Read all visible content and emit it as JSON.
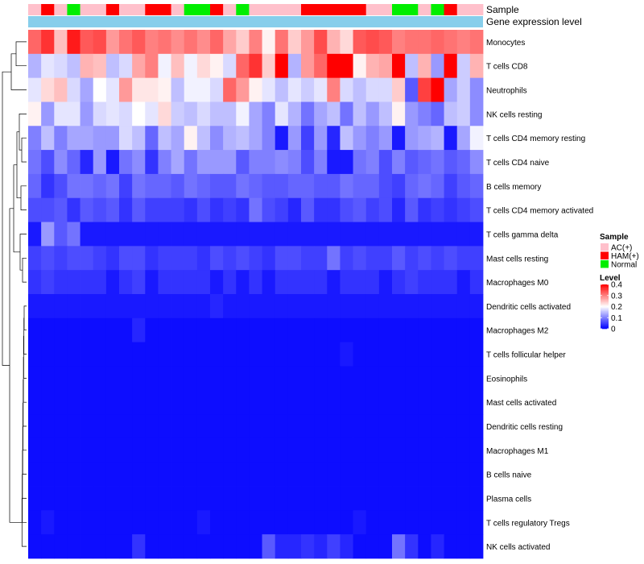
{
  "chart_data": {
    "type": "heatmap",
    "annotation_labels": [
      "Sample",
      "Gene expression level"
    ],
    "legend": {
      "sample_title": "Sample",
      "sample_groups": [
        {
          "label": "AC(+)",
          "color": "#FFC0CB"
        },
        {
          "label": "HAM(+)",
          "color": "#FF0000"
        },
        {
          "label": "Normal",
          "color": "#00EE00"
        }
      ],
      "level_title": "Level",
      "level_ticks": [
        "0.4",
        "0.3",
        "0.2",
        "0.1",
        "0"
      ],
      "scale": {
        "min": 0,
        "max": 0.4,
        "low_color": "#0000FF",
        "mid_color": "#FFFFFF",
        "high_color": "#FF0000",
        "mid_value": 0.2
      }
    },
    "sample_groups_row": [
      0,
      1,
      0,
      2,
      0,
      0,
      1,
      0,
      0,
      1,
      1,
      0,
      2,
      2,
      1,
      0,
      2,
      0,
      0,
      0,
      0,
      1,
      1,
      1,
      1,
      1,
      0,
      0,
      2,
      2,
      0,
      2,
      1,
      0,
      0
    ],
    "expression_bar_color": "#87CEEB",
    "rows": [
      "Monocytes",
      "T cells CD8",
      "Neutrophils",
      "NK cells resting",
      "T cells CD4 memory resting",
      "T cells CD4 naive",
      "B cells memory",
      "T cells CD4 memory activated",
      "T cells gamma delta",
      "Mast cells resting",
      "Macrophages M0",
      "Dendritic cells activated",
      "Macrophages M2",
      "T cells follicular helper",
      "Eosinophils",
      "Mast cells activated",
      "Dendritic cells resting",
      "Macrophages M1",
      "B cells naive",
      "Plasma cells",
      "T cells regulatory  Tregs",
      "NK cells activated"
    ],
    "values": [
      [
        0.32,
        0.36,
        0.25,
        0.38,
        0.33,
        0.34,
        0.28,
        0.31,
        0.33,
        0.3,
        0.31,
        0.29,
        0.31,
        0.29,
        0.32,
        0.27,
        0.24,
        0.3,
        0.21,
        0.31,
        0.24,
        0.28,
        0.34,
        0.26,
        0.23,
        0.33,
        0.34,
        0.33,
        0.3,
        0.31,
        0.31,
        0.32,
        0.31,
        0.3,
        0.31
      ],
      [
        0.14,
        0.18,
        0.17,
        0.15,
        0.26,
        0.25,
        0.15,
        0.17,
        0.27,
        0.3,
        0.19,
        0.25,
        0.19,
        0.23,
        0.21,
        0.17,
        0.32,
        0.36,
        0.24,
        0.41,
        0.14,
        0.28,
        0.32,
        0.45,
        0.4,
        0.21,
        0.26,
        0.27,
        0.4,
        0.15,
        0.26,
        0.12,
        0.42,
        0.16,
        0.26
      ],
      [
        0.18,
        0.23,
        0.25,
        0.17,
        0.13,
        0.2,
        0.18,
        0.28,
        0.22,
        0.22,
        0.21,
        0.15,
        0.19,
        0.19,
        0.17,
        0.32,
        0.28,
        0.21,
        0.18,
        0.15,
        0.18,
        0.16,
        0.18,
        0.3,
        0.17,
        0.15,
        0.17,
        0.17,
        0.24,
        0.07,
        0.35,
        0.4,
        0.13,
        0.16,
        0.11
      ],
      [
        0.21,
        0.12,
        0.18,
        0.18,
        0.12,
        0.17,
        0.18,
        0.17,
        0.2,
        0.18,
        0.23,
        0.16,
        0.15,
        0.17,
        0.15,
        0.15,
        0.19,
        0.13,
        0.1,
        0.18,
        0.14,
        0.09,
        0.13,
        0.15,
        0.09,
        0.15,
        0.12,
        0.15,
        0.21,
        0.12,
        0.1,
        0.08,
        0.15,
        0.16,
        0.11
      ],
      [
        0.1,
        0.15,
        0.1,
        0.13,
        0.13,
        0.12,
        0.12,
        0.17,
        0.15,
        0.08,
        0.15,
        0.13,
        0.21,
        0.15,
        0.11,
        0.14,
        0.15,
        0.13,
        0.1,
        0.02,
        0.12,
        0.05,
        0.12,
        0.03,
        0.15,
        0.12,
        0.1,
        0.12,
        0.02,
        0.12,
        0.13,
        0.14,
        0.02,
        0.13,
        0.19
      ],
      [
        0.09,
        0.06,
        0.11,
        0.08,
        0.03,
        0.12,
        0.02,
        0.09,
        0.11,
        0.04,
        0.1,
        0.13,
        0.09,
        0.12,
        0.12,
        0.12,
        0.07,
        0.1,
        0.1,
        0.11,
        0.1,
        0.06,
        0.1,
        0.02,
        0.02,
        0.09,
        0.1,
        0.06,
        0.1,
        0.07,
        0.08,
        0.09,
        0.07,
        0.08,
        0.11
      ],
      [
        0.08,
        0.04,
        0.06,
        0.09,
        0.09,
        0.08,
        0.09,
        0.05,
        0.09,
        0.08,
        0.08,
        0.07,
        0.09,
        0.08,
        0.07,
        0.07,
        0.09,
        0.08,
        0.07,
        0.07,
        0.08,
        0.08,
        0.07,
        0.07,
        0.09,
        0.08,
        0.08,
        0.06,
        0.05,
        0.08,
        0.09,
        0.08,
        0.05,
        0.07,
        0.08
      ],
      [
        0.06,
        0.06,
        0.07,
        0.04,
        0.07,
        0.06,
        0.07,
        0.04,
        0.07,
        0.05,
        0.05,
        0.05,
        0.04,
        0.06,
        0.04,
        0.05,
        0.04,
        0.09,
        0.06,
        0.05,
        0.03,
        0.07,
        0.04,
        0.04,
        0.06,
        0.07,
        0.05,
        0.06,
        0.03,
        0.07,
        0.04,
        0.05,
        0.04,
        0.05,
        0.06
      ],
      [
        0.02,
        0.12,
        0.07,
        0.09,
        0.02,
        0.02,
        0.02,
        0.02,
        0.02,
        0.02,
        0.02,
        0.02,
        0.02,
        0.02,
        0.02,
        0.02,
        0.02,
        0.02,
        0.02,
        0.02,
        0.02,
        0.02,
        0.02,
        0.02,
        0.02,
        0.02,
        0.02,
        0.02,
        0.02,
        0.02,
        0.02,
        0.02,
        0.02,
        0.02,
        0.02
      ],
      [
        0.05,
        0.06,
        0.05,
        0.06,
        0.06,
        0.05,
        0.04,
        0.06,
        0.06,
        0.04,
        0.05,
        0.05,
        0.05,
        0.04,
        0.06,
        0.05,
        0.06,
        0.05,
        0.04,
        0.06,
        0.06,
        0.05,
        0.05,
        0.09,
        0.05,
        0.06,
        0.05,
        0.05,
        0.07,
        0.05,
        0.06,
        0.05,
        0.06,
        0.05,
        0.05
      ],
      [
        0.04,
        0.05,
        0.04,
        0.04,
        0.04,
        0.04,
        0.02,
        0.04,
        0.05,
        0.02,
        0.04,
        0.04,
        0.04,
        0.04,
        0.02,
        0.04,
        0.02,
        0.04,
        0.02,
        0.04,
        0.04,
        0.04,
        0.04,
        0.02,
        0.04,
        0.04,
        0.04,
        0.02,
        0.04,
        0.05,
        0.04,
        0.04,
        0.04,
        0.02,
        0.04
      ],
      [
        0.02,
        0.02,
        0.02,
        0.02,
        0.02,
        0.02,
        0.02,
        0.02,
        0.02,
        0.02,
        0.02,
        0.02,
        0.02,
        0.02,
        0.03,
        0.02,
        0.02,
        0.02,
        0.02,
        0.02,
        0.02,
        0.02,
        0.02,
        0.02,
        0.02,
        0.02,
        0.02,
        0.02,
        0.02,
        0.02,
        0.02,
        0.02,
        0.02,
        0.02,
        0.02
      ],
      [
        0.01,
        0.01,
        0.01,
        0.01,
        0.01,
        0.01,
        0.01,
        0.01,
        0.03,
        0.01,
        0.01,
        0.01,
        0.01,
        0.01,
        0.01,
        0.01,
        0.01,
        0.01,
        0.01,
        0.01,
        0.01,
        0.01,
        0.01,
        0.01,
        0.01,
        0.01,
        0.01,
        0.01,
        0.01,
        0.01,
        0.01,
        0.01,
        0.01,
        0.01,
        0.01
      ],
      [
        0.01,
        0.01,
        0.01,
        0.01,
        0.01,
        0.01,
        0.01,
        0.01,
        0.01,
        0.01,
        0.01,
        0.01,
        0.01,
        0.01,
        0.01,
        0.01,
        0.01,
        0.01,
        0.01,
        0.01,
        0.01,
        0.01,
        0.01,
        0.01,
        0.02,
        0.01,
        0.01,
        0.01,
        0.01,
        0.01,
        0.01,
        0.01,
        0.01,
        0.01,
        0.01
      ],
      [
        0.01,
        0.01,
        0.01,
        0.01,
        0.01,
        0.01,
        0.01,
        0.01,
        0.01,
        0.01,
        0.01,
        0.01,
        0.01,
        0.01,
        0.01,
        0.01,
        0.01,
        0.01,
        0.01,
        0.01,
        0.01,
        0.01,
        0.01,
        0.01,
        0.01,
        0.01,
        0.01,
        0.01,
        0.01,
        0.01,
        0.01,
        0.01,
        0.01,
        0.01,
        0.01
      ],
      [
        0.01,
        0.01,
        0.01,
        0.01,
        0.01,
        0.01,
        0.01,
        0.01,
        0.01,
        0.01,
        0.01,
        0.01,
        0.01,
        0.01,
        0.01,
        0.01,
        0.01,
        0.01,
        0.01,
        0.01,
        0.01,
        0.01,
        0.01,
        0.01,
        0.01,
        0.01,
        0.01,
        0.01,
        0.01,
        0.01,
        0.01,
        0.01,
        0.01,
        0.01,
        0.01
      ],
      [
        0.01,
        0.01,
        0.01,
        0.01,
        0.01,
        0.01,
        0.01,
        0.01,
        0.01,
        0.01,
        0.01,
        0.01,
        0.01,
        0.01,
        0.01,
        0.01,
        0.01,
        0.01,
        0.01,
        0.01,
        0.01,
        0.01,
        0.01,
        0.01,
        0.01,
        0.01,
        0.01,
        0.01,
        0.01,
        0.01,
        0.01,
        0.01,
        0.01,
        0.01,
        0.01
      ],
      [
        0.01,
        0.01,
        0.01,
        0.01,
        0.01,
        0.01,
        0.01,
        0.01,
        0.01,
        0.01,
        0.01,
        0.01,
        0.01,
        0.01,
        0.01,
        0.01,
        0.01,
        0.01,
        0.01,
        0.01,
        0.01,
        0.01,
        0.01,
        0.01,
        0.01,
        0.01,
        0.01,
        0.01,
        0.01,
        0.01,
        0.01,
        0.01,
        0.01,
        0.01,
        0.01
      ],
      [
        0.01,
        0.01,
        0.01,
        0.01,
        0.01,
        0.01,
        0.01,
        0.01,
        0.01,
        0.01,
        0.01,
        0.01,
        0.01,
        0.01,
        0.01,
        0.01,
        0.01,
        0.01,
        0.01,
        0.01,
        0.01,
        0.01,
        0.01,
        0.01,
        0.01,
        0.01,
        0.01,
        0.01,
        0.01,
        0.01,
        0.01,
        0.01,
        0.01,
        0.01,
        0.01
      ],
      [
        0.01,
        0.01,
        0.01,
        0.01,
        0.01,
        0.01,
        0.01,
        0.01,
        0.01,
        0.01,
        0.01,
        0.01,
        0.01,
        0.01,
        0.01,
        0.01,
        0.01,
        0.01,
        0.01,
        0.01,
        0.01,
        0.01,
        0.01,
        0.01,
        0.01,
        0.01,
        0.01,
        0.01,
        0.01,
        0.01,
        0.01,
        0.01,
        0.01,
        0.01,
        0.01
      ],
      [
        0.01,
        0.02,
        0.01,
        0.01,
        0.01,
        0.01,
        0.01,
        0.01,
        0.01,
        0.01,
        0.01,
        0.01,
        0.01,
        0.02,
        0.01,
        0.01,
        0.01,
        0.01,
        0.01,
        0.01,
        0.01,
        0.01,
        0.01,
        0.01,
        0.01,
        0.02,
        0.01,
        0.01,
        0.01,
        0.01,
        0.01,
        0.01,
        0.01,
        0.01,
        0.01
      ],
      [
        0.01,
        0.01,
        0.01,
        0.01,
        0.01,
        0.01,
        0.01,
        0.01,
        0.04,
        0.01,
        0.01,
        0.01,
        0.01,
        0.01,
        0.01,
        0.01,
        0.01,
        0.01,
        0.07,
        0.03,
        0.03,
        0.04,
        0.03,
        0.05,
        0.03,
        0.01,
        0.01,
        0.01,
        0.09,
        0.04,
        0.01,
        0.03,
        0.01,
        0.01,
        0.01
      ]
    ]
  }
}
